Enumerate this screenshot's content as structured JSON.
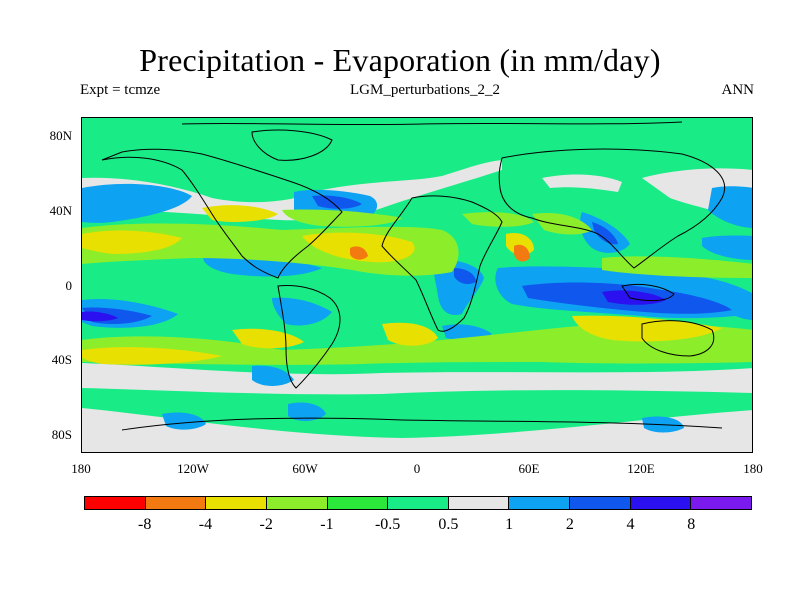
{
  "title": "Precipitation - Evaporation (in mm/day)",
  "experiment": "Expt = tcmze",
  "case": "LGM_perturbations_2_2",
  "period": "ANN",
  "lat_labels": [
    "80N",
    "40N",
    "0",
    "40S",
    "80S"
  ],
  "lon_labels": [
    "180",
    "120W",
    "60W",
    "0",
    "60E",
    "120E",
    "180"
  ],
  "colorbar": {
    "labels": [
      "-8",
      "-4",
      "-2",
      "-1",
      "-0.5",
      "0.5",
      "1",
      "2",
      "4",
      "8"
    ],
    "colors": [
      "#ff0000",
      "#f27a10",
      "#e8e000",
      "#8cee2a",
      "#2be83a",
      "#19ec86",
      "#e6e6e6",
      "#0da2f2",
      "#1057ee",
      "#2b10f0",
      "#7a1aee"
    ]
  },
  "map_colors": {
    "ocean_neutral": "#19ec86",
    "land_moist": "#2be83a",
    "near_zero": "#e6e6e6",
    "wet_1_2": "#0da2f2",
    "wet_2_4": "#1057ee",
    "wet_4_8": "#2b10f0",
    "dry_0_5_1": "#8cee2a",
    "dry_1_2": "#e8e000",
    "dry_2_4": "#f27a10",
    "coast": "#000000"
  }
}
